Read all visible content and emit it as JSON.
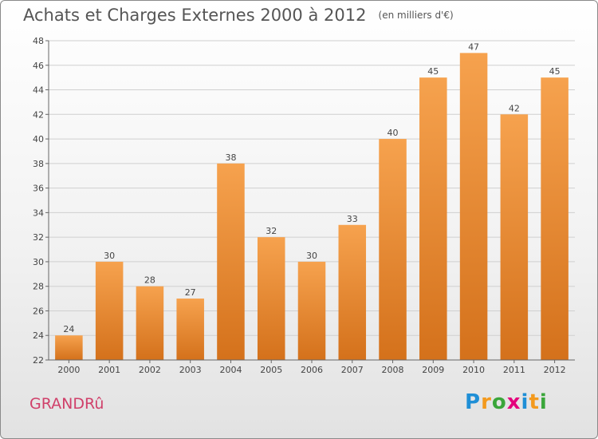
{
  "header": {
    "title": "Achats et Charges Externes 2000 à 2012",
    "unit": "(en milliers d'€)"
  },
  "footer": {
    "place": "GRANDRû",
    "logo_letters": [
      "P",
      "r",
      "o",
      "x",
      "i",
      "t",
      "i"
    ],
    "logo_colors": [
      "#1f8fd6",
      "#f39a1e",
      "#3aa63a",
      "#e4007c",
      "#1f8fd6",
      "#f39a1e",
      "#3aa63a"
    ]
  },
  "colors": {
    "bar_top": "#f6a24e",
    "bar_bottom": "#d4711b",
    "grid": "#d0d0d0",
    "axis": "#666666",
    "title": "#555555",
    "place": "#d0406a"
  },
  "chart_data": {
    "type": "bar",
    "title": "Achats et Charges Externes 2000 à 2012",
    "subtitle": "(en milliers d'€)",
    "categories": [
      "2000",
      "2001",
      "2002",
      "2003",
      "2004",
      "2005",
      "2006",
      "2007",
      "2008",
      "2009",
      "2010",
      "2011",
      "2012"
    ],
    "values": [
      24,
      30,
      28,
      27,
      38,
      32,
      30,
      33,
      40,
      45,
      47,
      42,
      45
    ],
    "ylim": [
      22,
      48
    ],
    "yticks": [
      22,
      24,
      26,
      28,
      30,
      32,
      34,
      36,
      38,
      40,
      42,
      44,
      46,
      48
    ],
    "grid": true,
    "legend": "none",
    "data_labels": true
  }
}
